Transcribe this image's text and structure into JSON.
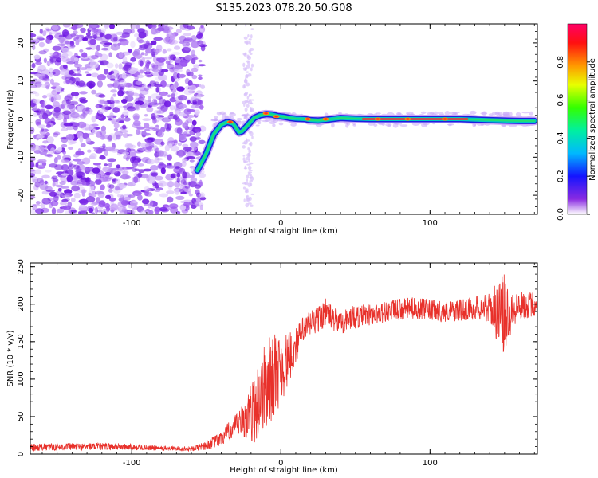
{
  "title": "S135.2023.078.20.50.G08",
  "colors": {
    "snr_line": "#e8302a",
    "axis": "#000000",
    "purple": "#7a28e6",
    "ridge_edge": "#1d1fe0",
    "ridge_mid": "#00c8c0",
    "ridge_core": "#ff2a2a"
  },
  "chart_data": [
    {
      "type": "heatmap",
      "name": "spectrogram",
      "xlabel": "Height of straight line (km)",
      "ylabel": "Frequency (Hz)",
      "xlim": [
        -168,
        172
      ],
      "ylim": [
        -25,
        25
      ],
      "xticks": [
        -100,
        0,
        100
      ],
      "xtick_labels": [
        "-100",
        "0",
        "100"
      ],
      "yticks": [
        -20,
        -10,
        0,
        10,
        20
      ],
      "ytick_labels": [
        "-20",
        "-10",
        "0",
        "10",
        "20"
      ],
      "grid": false,
      "ridge": {
        "x": [
          -56,
          -50,
          -45,
          -40,
          -36,
          -32,
          -28,
          -26,
          -22,
          -18,
          -14,
          -10,
          -6,
          -2,
          2,
          6,
          10,
          16,
          20,
          25,
          30,
          40,
          50,
          60,
          80,
          100,
          120,
          140,
          160,
          170
        ],
        "y": [
          -13.5,
          -9,
          -4,
          -1.5,
          -0.8,
          -1.2,
          -3.5,
          -3.2,
          -1.5,
          0.3,
          1,
          1.3,
          1.2,
          0.8,
          0.6,
          0.3,
          0.1,
          0,
          -0.3,
          -0.4,
          -0.2,
          0.3,
          0.1,
          0,
          0,
          0,
          0,
          -0.3,
          -0.5,
          -0.5
        ]
      },
      "hotspots": [
        {
          "x": -34,
          "y": -0.8
        },
        {
          "x": -10,
          "y": 1.5
        },
        {
          "x": -3,
          "y": 0.7
        },
        {
          "x": 18,
          "y": 0
        },
        {
          "x": 30,
          "y": 0
        },
        {
          "x": 65,
          "y": 0
        },
        {
          "x": 85,
          "y": 0
        },
        {
          "x": 110,
          "y": 0
        }
      ],
      "colorbar": {
        "label": "Normalized spectral amplitude",
        "range": [
          0,
          1
        ],
        "ticks": [
          0.0,
          0.2,
          0.4,
          0.6,
          0.8
        ],
        "tick_labels": [
          "0.0",
          "0.2",
          "0.4",
          "0.6",
          "0.8"
        ],
        "colormap": [
          {
            "v": 0.0,
            "color": "#ffffff"
          },
          {
            "v": 0.08,
            "color": "#8a2be2"
          },
          {
            "v": 0.2,
            "color": "#1414ff"
          },
          {
            "v": 0.32,
            "color": "#00b8ff"
          },
          {
            "v": 0.44,
            "color": "#00f0a0"
          },
          {
            "v": 0.56,
            "color": "#33ff00"
          },
          {
            "v": 0.68,
            "color": "#e8ff00"
          },
          {
            "v": 0.78,
            "color": "#ff9900"
          },
          {
            "v": 0.9,
            "color": "#ff1010"
          },
          {
            "v": 1.0,
            "color": "#ff0066"
          }
        ]
      }
    },
    {
      "type": "line",
      "name": "snr",
      "xlabel": "Height of straight line (km)",
      "ylabel": "SNR (10 * v/v)",
      "xlim": [
        -168,
        172
      ],
      "ylim": [
        0,
        255
      ],
      "xticks": [
        -100,
        0,
        100
      ],
      "xtick_labels": [
        "-100",
        "0",
        "100"
      ],
      "yticks": [
        0,
        50,
        100,
        150,
        200,
        250
      ],
      "ytick_labels": [
        "0",
        "50",
        "100",
        "150",
        "200",
        "250"
      ],
      "grid": false,
      "series": [
        {
          "x": [
            -168,
            -140,
            -110,
            -80,
            -60,
            -50,
            -40,
            -35,
            -30,
            -25,
            -20,
            -15,
            -10,
            -5,
            0,
            5,
            10,
            15,
            20,
            25,
            30,
            35,
            40,
            45,
            50,
            60,
            70,
            80,
            90,
            100,
            110,
            120,
            130,
            140,
            145,
            150,
            155,
            160,
            172
          ],
          "y": [
            9,
            10,
            10,
            8,
            7,
            12,
            20,
            30,
            37,
            45,
            55,
            70,
            90,
            105,
            115,
            125,
            145,
            165,
            175,
            180,
            190,
            180,
            175,
            180,
            183,
            186,
            190,
            193,
            195,
            192,
            190,
            192,
            195,
            195,
            190,
            185,
            195,
            198,
            200
          ],
          "noise": [
            3,
            3,
            3,
            2,
            2,
            4,
            6,
            8,
            10,
            15,
            25,
            35,
            40,
            35,
            30,
            22,
            15,
            12,
            12,
            12,
            12,
            10,
            10,
            10,
            10,
            9,
            9,
            9,
            9,
            9,
            9,
            9,
            10,
            12,
            25,
            35,
            18,
            12,
            10
          ]
        }
      ]
    }
  ]
}
